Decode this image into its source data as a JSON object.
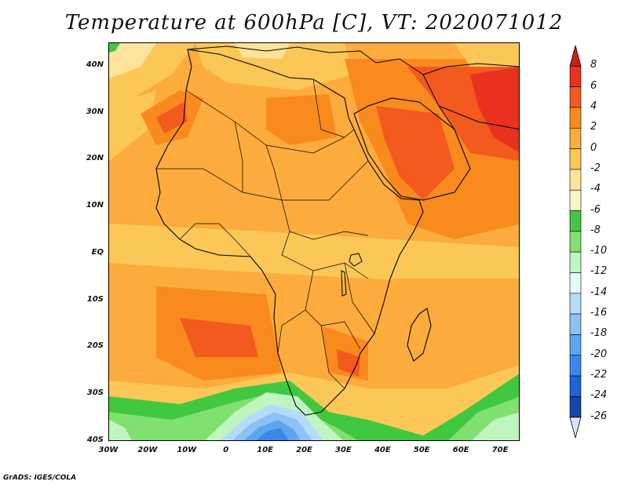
{
  "title": "Temperature at 600hPa [C], VT: 2020071012",
  "credit": "GrADS: IGES/COLA",
  "map": {
    "lon_range": [
      -30,
      75
    ],
    "lat_range": [
      -40,
      45
    ],
    "lat_ticks": [
      {
        "value": 40,
        "label": "40N"
      },
      {
        "value": 30,
        "label": "30N"
      },
      {
        "value": 20,
        "label": "20N"
      },
      {
        "value": 10,
        "label": "10N"
      },
      {
        "value": 0,
        "label": "EQ"
      },
      {
        "value": -10,
        "label": "10S"
      },
      {
        "value": -20,
        "label": "20S"
      },
      {
        "value": -30,
        "label": "30S"
      },
      {
        "value": -40,
        "label": "40S"
      }
    ],
    "lon_ticks": [
      {
        "value": -30,
        "label": "30W"
      },
      {
        "value": -20,
        "label": "20W"
      },
      {
        "value": -10,
        "label": "10W"
      },
      {
        "value": 0,
        "label": "0"
      },
      {
        "value": 10,
        "label": "10E"
      },
      {
        "value": 20,
        "label": "20E"
      },
      {
        "value": 30,
        "label": "30E"
      },
      {
        "value": 40,
        "label": "40E"
      },
      {
        "value": 50,
        "label": "50E"
      },
      {
        "value": 60,
        "label": "60E"
      },
      {
        "value": 70,
        "label": "70E"
      }
    ]
  },
  "colorbar": {
    "levels": [
      {
        "label": "8",
        "color": "#e8321e"
      },
      {
        "label": "6",
        "color": "#f25a1e"
      },
      {
        "label": "4",
        "color": "#f98a1e"
      },
      {
        "label": "2",
        "color": "#fbac3c"
      },
      {
        "label": "0",
        "color": "#fbc858"
      },
      {
        "label": "-2",
        "color": "#fde49a"
      },
      {
        "label": "-4",
        "color": "#fdf5c8"
      },
      {
        "label": "-6",
        "color": "#40c840"
      },
      {
        "label": "-8",
        "color": "#80e070"
      },
      {
        "label": "-10",
        "color": "#c0f5c0"
      },
      {
        "label": "-12",
        "color": "#e6fafa"
      },
      {
        "label": "-14",
        "color": "#b4dcf8"
      },
      {
        "label": "-16",
        "color": "#8cc2f5"
      },
      {
        "label": "-18",
        "color": "#5ea5f0"
      },
      {
        "label": "-20",
        "color": "#3a88e6"
      },
      {
        "label": "-22",
        "color": "#1e64d2"
      },
      {
        "label": "-24",
        "color": "#1446aa"
      },
      {
        "label": "-26",
        "color": "#0c1e78"
      }
    ],
    "top_color": "#c82014",
    "bottom_color": "#e0e0f8"
  }
}
